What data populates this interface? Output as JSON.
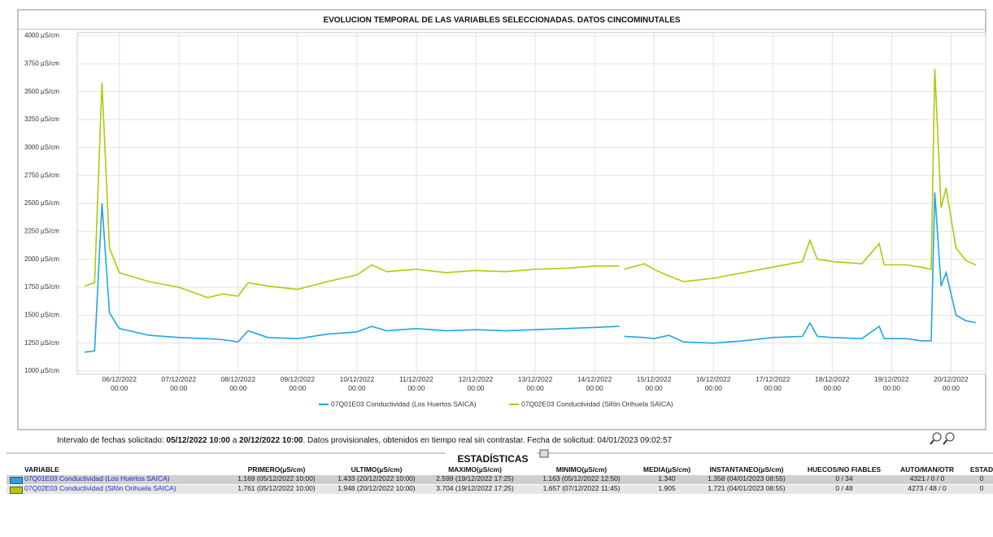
{
  "chart_data": {
    "type": "line",
    "title": "EVOLUCION TEMPORAL DE LAS VARIABLES SELECCIONADAS. DATOS CINCOMINUTALES",
    "x": [
      "05/12/2022 10:00",
      "05/12/2022 14:00",
      "05/12/2022 17:00",
      "05/12/2022 20:00",
      "06/12/2022 00:00",
      "06/12/2022 06:00",
      "06/12/2022 12:00",
      "07/12/2022 00:00",
      "07/12/2022 11:45",
      "07/12/2022 18:00",
      "08/12/2022 00:00",
      "08/12/2022 04:00",
      "08/12/2022 12:00",
      "09/12/2022 00:00",
      "09/12/2022 12:00",
      "10/12/2022 00:00",
      "10/12/2022 06:00",
      "10/12/2022 12:00",
      "11/12/2022 00:00",
      "11/12/2022 12:00",
      "12/12/2022 00:00",
      "12/12/2022 12:00",
      "13/12/2022 00:00",
      "13/12/2022 12:00",
      "14/12/2022 00:00",
      "14/12/2022 10:00",
      "14/12/2022 11:00",
      "14/12/2022 12:00",
      "14/12/2022 20:00",
      "15/12/2022 00:00",
      "15/12/2022 06:00",
      "15/12/2022 12:00",
      "16/12/2022 00:00",
      "16/12/2022 12:00",
      "17/12/2022 00:00",
      "17/12/2022 12:00",
      "17/12/2022 15:00",
      "17/12/2022 18:00",
      "18/12/2022 00:00",
      "18/12/2022 12:00",
      "18/12/2022 19:00",
      "18/12/2022 21:00",
      "19/12/2022 06:00",
      "19/12/2022 12:00",
      "19/12/2022 16:00",
      "19/12/2022 17:25",
      "19/12/2022 20:00",
      "19/12/2022 22:00",
      "20/12/2022 02:00",
      "20/12/2022 06:00",
      "20/12/2022 10:00"
    ],
    "series": [
      {
        "name": "07Q01E03 Conductividad (Los Huertos SAICA)",
        "color": "#1ea7e1",
        "values": [
          1169,
          1180,
          2500,
          1520,
          1380,
          1350,
          1320,
          1300,
          1290,
          1280,
          1260,
          1360,
          1300,
          1290,
          1330,
          1350,
          1400,
          1360,
          1380,
          1360,
          1370,
          1360,
          1370,
          1380,
          1390,
          1400,
          null,
          1310,
          1300,
          1290,
          1320,
          1260,
          1250,
          1270,
          1300,
          1310,
          1430,
          1310,
          1300,
          1290,
          1400,
          1290,
          1290,
          1270,
          1270,
          2599,
          1760,
          1880,
          1500,
          1450,
          1433
        ]
      },
      {
        "name": "07Q02E03 Conductividad (Sifón Orihuela SAICA)",
        "color": "#b5c60a",
        "values": [
          1761,
          1790,
          3580,
          2100,
          1880,
          1840,
          1800,
          1750,
          1657,
          1690,
          1670,
          1790,
          1760,
          1730,
          1800,
          1860,
          1950,
          1890,
          1910,
          1880,
          1900,
          1890,
          1910,
          1920,
          1940,
          1940,
          null,
          1910,
          1960,
          1910,
          1850,
          1800,
          1830,
          1880,
          1930,
          1980,
          2170,
          2000,
          1980,
          1960,
          2140,
          1950,
          1950,
          1930,
          1910,
          3704,
          2460,
          2640,
          2100,
          1990,
          1948
        ]
      }
    ],
    "xlim": [
      "05/12/2022 07:00",
      "20/12/2022 14:00"
    ],
    "xticks": [
      {
        "value": "06/12/2022 00:00",
        "label": "06/12/2022 00:00"
      },
      {
        "value": "07/12/2022 00:00",
        "label": "07/12/2022 00:00"
      },
      {
        "value": "08/12/2022 00:00",
        "label": "08/12/2022 00:00"
      },
      {
        "value": "09/12/2022 00:00",
        "label": "09/12/2022 00:00"
      },
      {
        "value": "10/12/2022 00:00",
        "label": "10/12/2022 00:00"
      },
      {
        "value": "11/12/2022 00:00",
        "label": "11/12/2022 00:00"
      },
      {
        "value": "12/12/2022 00:00",
        "label": "12/12/2022 00:00"
      },
      {
        "value": "13/12/2022 00:00",
        "label": "13/12/2022 00:00"
      },
      {
        "value": "14/12/2022 00:00",
        "label": "14/12/2022 00:00"
      },
      {
        "value": "15/12/2022 00:00",
        "label": "15/12/2022 00:00"
      },
      {
        "value": "16/12/2022 00:00",
        "label": "16/12/2022 00:00"
      },
      {
        "value": "17/12/2022 00:00",
        "label": "17/12/2022 00:00"
      },
      {
        "value": "18/12/2022 00:00",
        "label": "18/12/2022 00:00"
      },
      {
        "value": "19/12/2022 00:00",
        "label": "19/12/2022 00:00"
      },
      {
        "value": "20/12/2022 00:00",
        "label": "20/12/2022 00:00"
      }
    ],
    "ylim": [
      1000,
      4000
    ],
    "yticks": [
      {
        "value": 1000,
        "label": "1000 µS/cm"
      },
      {
        "value": 1250,
        "label": "1250 µS/cm"
      },
      {
        "value": 1500,
        "label": "1500 µS/cm"
      },
      {
        "value": 1750,
        "label": "1750 µS/cm"
      },
      {
        "value": 2000,
        "label": "2000 µS/cm"
      },
      {
        "value": 2250,
        "label": "2250 µS/cm"
      },
      {
        "value": 2500,
        "label": "2500 µS/cm"
      },
      {
        "value": 2750,
        "label": "2750 µS/cm"
      },
      {
        "value": 3000,
        "label": "3000 µS/cm"
      },
      {
        "value": 3250,
        "label": "3250 µS/cm"
      },
      {
        "value": 3500,
        "label": "3500 µS/cm"
      },
      {
        "value": 3750,
        "label": "3750 µS/cm"
      },
      {
        "value": 4000,
        "label": "4000 µS/cm"
      }
    ],
    "grid": true,
    "legend": "bottom"
  },
  "info": {
    "parts": [
      {
        "text": "Intervalo de fechas solicitado: ",
        "bold": false
      },
      {
        "text": "05/12/2022 10:00",
        "bold": true
      },
      {
        "text": " a ",
        "bold": false
      },
      {
        "text": "20/12/2022 10:00",
        "bold": true
      },
      {
        "text": ". Datos provisionales, obtenidos en tiempo real sin contrastar. Fecha de solicitud: 04/01/2023 09:02:57",
        "bold": false
      }
    ]
  },
  "statistics": {
    "title": "ESTADÍSTICAS",
    "columns": [
      "VARIABLE",
      "PRIMERO(µS/cm)",
      "ULTIMO(µS/cm)",
      "MAXIMO(µS/cm)",
      "MINIMO(µS/cm)",
      "MEDIA(µS/cm)",
      "INSTANTANEO(µS/cm)",
      "HUECOS/NO FIABLES",
      "AUTO/MAN/OTR",
      "ESTAD"
    ],
    "rows": [
      {
        "color": "#1ea7e1",
        "cells": [
          "07Q01E03 Conductividad (Los Huertos SAICA)",
          "1.169 (05/12/2022 10:00)",
          "1.433 (20/12/2022 10:00)",
          "2.599 (19/12/2022 17:25)",
          "1.163 (05/12/2022 12:50)",
          "1.340",
          "1.358 (04/01/2023 08:55)",
          "0 / 34",
          "4321 / 0 / 0",
          "0"
        ]
      },
      {
        "color": "#b5c60a",
        "cells": [
          "07Q02E03 Conductividad (Sifón Orihuela SAICA)",
          "1.761 (05/12/2022 10:00)",
          "1.948 (20/12/2022 10:00)",
          "3.704 (19/12/2022 17:25)",
          "1.657 (07/12/2022 11:45)",
          "1.905",
          "1.721 (04/01/2023 08:55)",
          "0 / 48",
          "4273 / 48 / 0",
          "0"
        ]
      }
    ]
  }
}
